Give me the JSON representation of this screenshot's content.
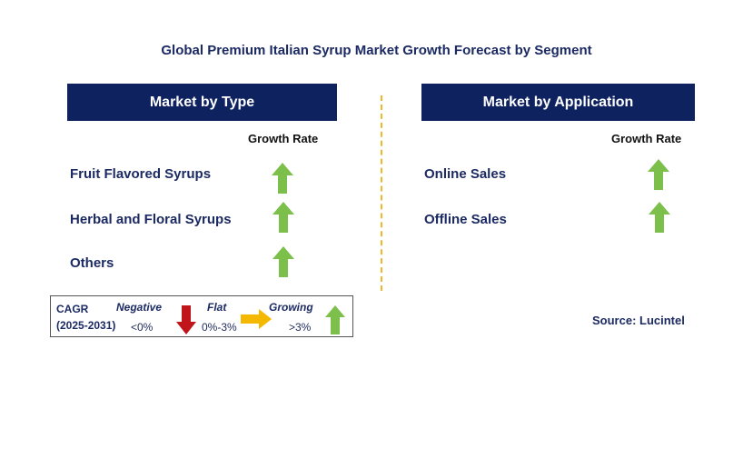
{
  "title": "Global Premium Italian Syrup Market Growth Forecast by Segment",
  "colors": {
    "header_bg": "#0f2260",
    "up_arrow": "#7cc04b",
    "down_arrow": "#c0161b",
    "flat_arrow": "#f5b800",
    "divider": "#f0b72a"
  },
  "type_panel": {
    "header": "Market by Type",
    "column_label": "Growth Rate",
    "rows": [
      {
        "label": "Fruit Flavored Syrups",
        "trend": "growing"
      },
      {
        "label": "Herbal and Floral Syrups",
        "trend": "growing"
      },
      {
        "label": "Others",
        "trend": "growing"
      }
    ]
  },
  "application_panel": {
    "header": "Market by Application",
    "column_label": "Growth Rate",
    "rows": [
      {
        "label": "Online Sales",
        "trend": "growing"
      },
      {
        "label": "Offline Sales",
        "trend": "growing"
      }
    ]
  },
  "legend": {
    "cagr_label": "CAGR",
    "period": "(2025-2031)",
    "negative_label": "Negative",
    "negative_range": "<0%",
    "flat_label": "Flat",
    "flat_range": "0%-3%",
    "growing_label": "Growing",
    "growing_range": ">3%"
  },
  "source": "Source: Lucintel"
}
